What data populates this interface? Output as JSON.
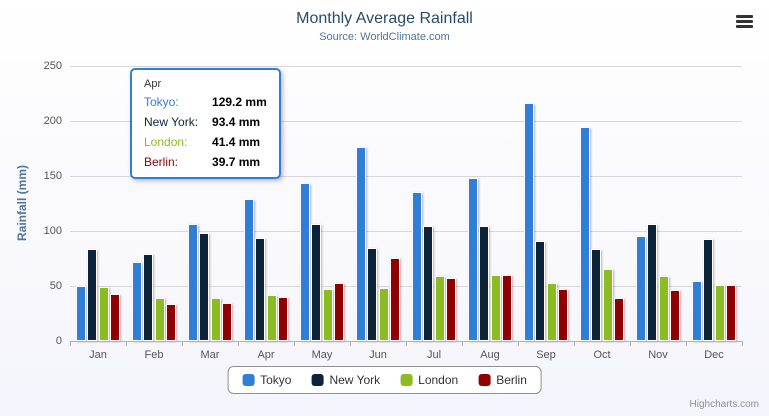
{
  "credits": "Highcharts.com",
  "icons": {
    "menu": "hamburger-menu-icon"
  },
  "chart_data": {
    "type": "bar",
    "title": "Monthly Average Rainfall",
    "subtitle": "Source: WorldClimate.com",
    "xlabel": "",
    "ylabel": "Rainfall (mm)",
    "ylim": [
      0,
      250
    ],
    "yticks": [
      0,
      50,
      100,
      150,
      200,
      250
    ],
    "grid": true,
    "legend_position": "bottom",
    "categories": [
      "Jan",
      "Feb",
      "Mar",
      "Apr",
      "May",
      "Jun",
      "Jul",
      "Aug",
      "Sep",
      "Oct",
      "Nov",
      "Dec"
    ],
    "series": [
      {
        "name": "Tokyo",
        "color": "#2f7ed8",
        "values": [
          49.9,
          71.5,
          106.4,
          129.2,
          144.0,
          176.0,
          135.6,
          148.5,
          216.4,
          194.1,
          95.6,
          54.4
        ]
      },
      {
        "name": "New York",
        "color": "#0d233a",
        "values": [
          83.6,
          78.8,
          98.5,
          93.4,
          106.0,
          84.5,
          105.0,
          104.3,
          91.2,
          83.5,
          106.6,
          92.3
        ]
      },
      {
        "name": "London",
        "color": "#8bbc21",
        "values": [
          48.9,
          38.8,
          39.3,
          41.4,
          47.0,
          48.3,
          59.0,
          59.6,
          52.4,
          65.2,
          59.3,
          51.2
        ]
      },
      {
        "name": "Berlin",
        "color": "#910000",
        "values": [
          42.4,
          33.2,
          34.5,
          39.7,
          52.6,
          75.5,
          57.4,
          60.4,
          47.6,
          39.1,
          46.8,
          51.1
        ]
      }
    ]
  },
  "tooltip": {
    "category": "Apr",
    "border_color": "#2f7ed8",
    "rows": [
      {
        "name": "Tokyo",
        "value": "129.2 mm",
        "color": "#2f7ed8"
      },
      {
        "name": "New York",
        "value": "93.4 mm",
        "color": "#0d233a"
      },
      {
        "name": "London",
        "value": "41.4 mm",
        "color": "#8bbc21"
      },
      {
        "name": "Berlin",
        "value": "39.7 mm",
        "color": "#910000"
      }
    ]
  }
}
